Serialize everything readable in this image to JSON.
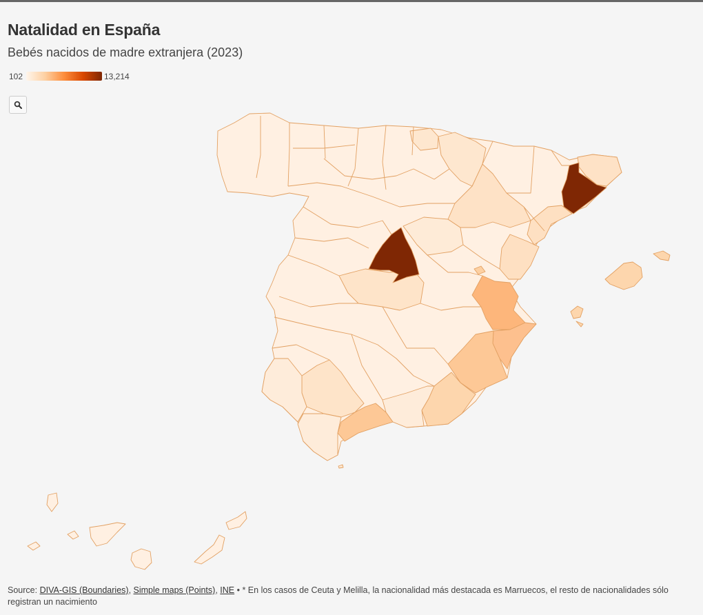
{
  "title": "Natalidad en España",
  "subtitle": "Bebés nacidos de madre extranjera (2023)",
  "legend": {
    "min": "102",
    "max": "13,214",
    "min_value": 102,
    "max_value": 13214,
    "colors": [
      "#fff5eb",
      "#fdd0a2",
      "#fd8d3c",
      "#d94801",
      "#7f2704"
    ]
  },
  "search": {
    "icon": "search-icon"
  },
  "map": {
    "regions": [
      {
        "id": "madrid",
        "color": "#7f2704"
      },
      {
        "id": "barcelona",
        "color": "#7f2704"
      },
      {
        "id": "valencia",
        "color": "#fdb67b"
      },
      {
        "id": "alicante",
        "color": "#fdc08e"
      },
      {
        "id": "murcia",
        "color": "#fdc896"
      },
      {
        "id": "malaga",
        "color": "#fdc896"
      },
      {
        "id": "almeria",
        "color": "#fdd6ad"
      },
      {
        "id": "baleares",
        "color": "#fdd6ad"
      },
      {
        "id": "tarragona",
        "color": "#fee0c2"
      },
      {
        "id": "zaragoza",
        "color": "#fee2c6"
      },
      {
        "id": "girona",
        "color": "#fee2c6"
      },
      {
        "id": "toledo",
        "color": "#fee4c9"
      },
      {
        "id": "sevilla",
        "color": "#fee4c9"
      },
      {
        "id": "castellon",
        "color": "#fee0c2"
      },
      {
        "id": "navarra",
        "color": "#fee7cf"
      },
      {
        "id": "gipuzkoa",
        "color": "#fee7cf"
      },
      {
        "id": "vizcaya",
        "color": "#fee7cf"
      },
      {
        "id": "alava",
        "color": "#fee7cf"
      },
      {
        "id": "guadalajara",
        "color": "#feebd7"
      },
      {
        "id": "cadiz",
        "color": "#feecda"
      },
      {
        "id": "huelva",
        "color": "#feecda"
      },
      {
        "id": "granada",
        "color": "#feecda"
      }
    ]
  },
  "footer": {
    "source_label": "Source:",
    "links": [
      "DIVA-GIS (Boundaries)",
      "Simple maps (Points)",
      "INE"
    ],
    "sep1": ",",
    "sep2": ",",
    "note": "• * En los casos de Ceuta y Melilla, la nacionalidad más destacada es Marruecos, el resto de nacionalidades sólo registran un nacimiento"
  }
}
